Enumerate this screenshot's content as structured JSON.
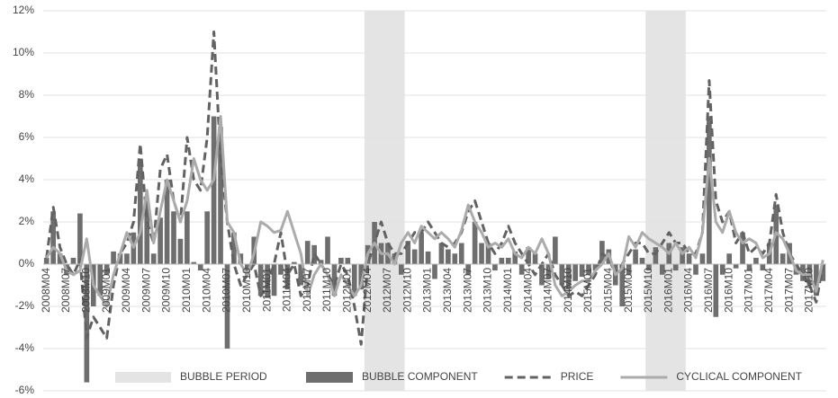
{
  "chart_data": {
    "type": "bar-line",
    "categories": [
      "2008M04",
      null,
      null,
      "2008M07",
      null,
      null,
      "2008M10",
      null,
      null,
      "2009M01",
      null,
      null,
      "2009M04",
      null,
      null,
      "2009M07",
      null,
      null,
      "2009M10",
      null,
      null,
      "2010M01",
      null,
      null,
      "2010M04",
      null,
      null,
      "2010M07",
      null,
      null,
      "2010M10",
      null,
      null,
      "2011M01",
      null,
      null,
      "2011M04",
      null,
      null,
      "2011M07",
      null,
      null,
      "2011M10",
      null,
      null,
      "2012M01",
      null,
      null,
      "2012M04",
      null,
      null,
      "2012M07",
      null,
      null,
      "2012M10",
      null,
      null,
      "2013M01",
      null,
      null,
      "2013M04",
      null,
      null,
      "2013M07",
      null,
      null,
      "2013M10",
      null,
      null,
      "2014M01",
      null,
      null,
      "2014M04",
      null,
      null,
      "2014M07",
      null,
      null,
      "2014M10",
      null,
      null,
      "2015M01",
      null,
      null,
      "2015M04",
      null,
      null,
      "2015M07",
      null,
      null,
      "2015M10",
      null,
      null,
      "2016M01",
      null,
      null,
      "2016M04",
      null,
      null,
      "2016M07",
      null,
      null,
      "2016M10",
      null,
      null,
      "2017M01",
      null,
      null,
      "2017M04",
      null,
      null,
      "2017M07",
      null,
      null,
      "2017M10",
      null,
      null
    ],
    "shaded_periods": {
      "name": "BUBBLE PERIOD",
      "color": "#e4e4e4",
      "ranges": [
        [
          "2012M04",
          "2012M10"
        ],
        [
          "2015M10",
          "2016M04"
        ]
      ]
    },
    "series": [
      {
        "name": "BUBBLE COMPONENT",
        "kind": "bar",
        "color": "#6e6e6e",
        "values": [
          0.3,
          2.5,
          0.5,
          -0.5,
          0.3,
          2.4,
          -5.6,
          -2,
          -1.5,
          -0.5,
          0.6,
          0.5,
          0.5,
          1.5,
          5,
          3,
          0.5,
          2.2,
          4,
          2.5,
          1.2,
          2.5,
          0.1,
          -0.3,
          2.5,
          7,
          6.5,
          -4,
          1.5,
          0.5,
          -0.5,
          1.3,
          -1.5,
          -1.6,
          -1.5,
          -0.5,
          -1.2,
          0.1,
          -1,
          1.1,
          0.9,
          0.2,
          1.3,
          -1.5,
          0.3,
          0.3,
          -1.5,
          -1.2,
          0.9,
          2,
          1,
          1,
          0.5,
          -0.5,
          1.1,
          0.7,
          1.5,
          0.6,
          -0.7,
          1,
          0.7,
          0.5,
          1,
          -0.5,
          2,
          1,
          1,
          -0.3,
          0.3,
          0.3,
          0.6,
          -0.5,
          0.8,
          0.5,
          -1,
          -0.7,
          1.3,
          -1,
          -1.2,
          -0.8,
          -0.6,
          -0.5,
          -0.3,
          1.1,
          0.7,
          -1,
          -2,
          -0.5,
          0.7,
          0.3,
          -0.3,
          0.8,
          -0.5,
          1,
          -0.3,
          0.8,
          0.5,
          -0.5,
          0.5,
          7,
          -2.5,
          -0.5,
          0.5,
          -0.2,
          1.5,
          -0.3,
          0.3,
          -0.3,
          1,
          2.8,
          0.5,
          1,
          -0.5,
          -0.8,
          -1,
          -1.5,
          -0.8
        ]
      },
      {
        "name": "PRICE",
        "kind": "dashed",
        "color": "#626262",
        "values": [
          0.3,
          2.7,
          0.8,
          0,
          -0.5,
          0.2,
          -3.5,
          -2.5,
          -3,
          -3.5,
          -1,
          0.5,
          1,
          2,
          5.7,
          2,
          1,
          4.5,
          5.2,
          3,
          2,
          6,
          4,
          3.5,
          6,
          11,
          5,
          2,
          0,
          -1,
          -0.5,
          0,
          -1.5,
          -1,
          0,
          1.5,
          -0.5,
          0,
          -1.5,
          -1,
          0.5,
          0,
          -0.5,
          -1,
          0,
          -0.5,
          -2,
          -3.8,
          0,
          1,
          2,
          1,
          0.5,
          0.5,
          1,
          1.5,
          1.5,
          2,
          1.5,
          1,
          0.8,
          1,
          1.5,
          2.5,
          3,
          2,
          1,
          0.5,
          1,
          1.8,
          1,
          0.5,
          0,
          -0.5,
          0,
          0.5,
          -0.5,
          -1,
          -1.5,
          -1.3,
          -1.5,
          -1,
          -0.5,
          0.5,
          0.3,
          -0.5,
          0,
          0.5,
          1,
          1,
          0.5,
          0.5,
          1,
          1.5,
          1,
          1,
          0.5,
          0.5,
          1.5,
          8.7,
          3,
          2,
          2.5,
          1,
          1.5,
          0.5,
          0.8,
          0.5,
          1,
          3.3,
          1.5,
          0.5,
          0,
          -0.5,
          -1,
          -1.8,
          0
        ]
      },
      {
        "name": "CYCLICAL COMPONENT",
        "kind": "line",
        "color": "#ababab",
        "values": [
          0.3,
          0.8,
          0.5,
          -0.3,
          -0.5,
          -0.3,
          1.2,
          -1,
          -1.5,
          -2,
          -0.5,
          0.5,
          1.5,
          0.8,
          1.5,
          3.5,
          1,
          2.5,
          4,
          3,
          2,
          3,
          5,
          4,
          3.5,
          4,
          7,
          2,
          1.5,
          0,
          -0.5,
          0.5,
          2,
          1.8,
          1.5,
          1.6,
          2.5,
          1.5,
          0.5,
          -1.5,
          -0.5,
          0,
          -0.5,
          -1.5,
          -0.5,
          -1,
          -1.5,
          -1,
          0.5,
          1,
          0.5,
          0.5,
          0,
          1,
          1.5,
          1,
          1.8,
          1.5,
          1.2,
          1.5,
          1.2,
          0.8,
          1.6,
          2.8,
          2,
          1.5,
          0.8,
          1,
          0.8,
          1.2,
          0.5,
          0.3,
          0.8,
          0.5,
          1.2,
          0.5,
          -1,
          -1.5,
          -1.3,
          -1,
          -0.8,
          -0.8,
          -0.3,
          0,
          0.5,
          -0.5,
          -0.2,
          1.3,
          0.8,
          1.5,
          1.2,
          1,
          0.8,
          0.5,
          1,
          0.5,
          0.8,
          0.3,
          1.5,
          5,
          2,
          1.5,
          2.5,
          1.5,
          1,
          1.2,
          1,
          0.3,
          0.5,
          1.5,
          1.2,
          0.5,
          -0.3,
          -0.5,
          -0.5,
          -1.3,
          0.2
        ]
      }
    ],
    "ylim": [
      -6,
      12
    ],
    "yticks": [
      {
        "value": -6,
        "label": "-6%"
      },
      {
        "value": -4,
        "label": "-4%"
      },
      {
        "value": -2,
        "label": "-2%"
      },
      {
        "value": 0,
        "label": "0%"
      },
      {
        "value": 2,
        "label": "2%"
      },
      {
        "value": 4,
        "label": "4%"
      },
      {
        "value": 6,
        "label": "6%"
      },
      {
        "value": 8,
        "label": "8%"
      },
      {
        "value": 10,
        "label": "10%"
      },
      {
        "value": 12,
        "label": "12%"
      }
    ],
    "grid": true
  }
}
